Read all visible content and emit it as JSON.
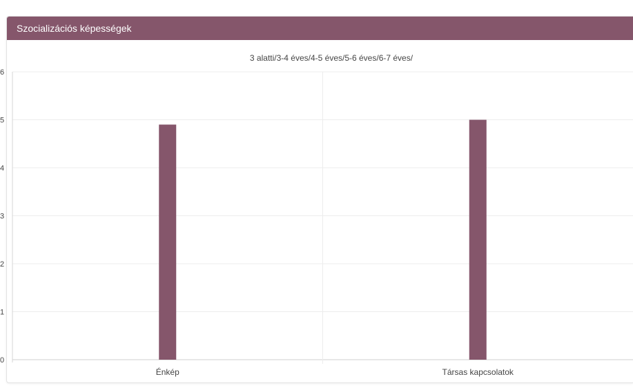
{
  "panel": {
    "title": "Szocializációs képességek"
  },
  "colors": {
    "header": "#85566b",
    "bar": "#85566b",
    "grid": "#ececec",
    "axis": "#d6d6d6",
    "text": "#444444"
  },
  "chart_data": {
    "type": "bar",
    "title": "3 alatti/3-4 éves/4-5 éves/5-6 éves/6-7 éves/",
    "categories": [
      "Énkép",
      "Társas kapcsolatok"
    ],
    "values": [
      4.9,
      5.0
    ],
    "y_ticks": [
      "0",
      "1",
      "2",
      "3",
      "4",
      "5",
      "6"
    ],
    "ylim": [
      0,
      6
    ],
    "xlabel": "",
    "ylabel": "",
    "grid": true
  }
}
